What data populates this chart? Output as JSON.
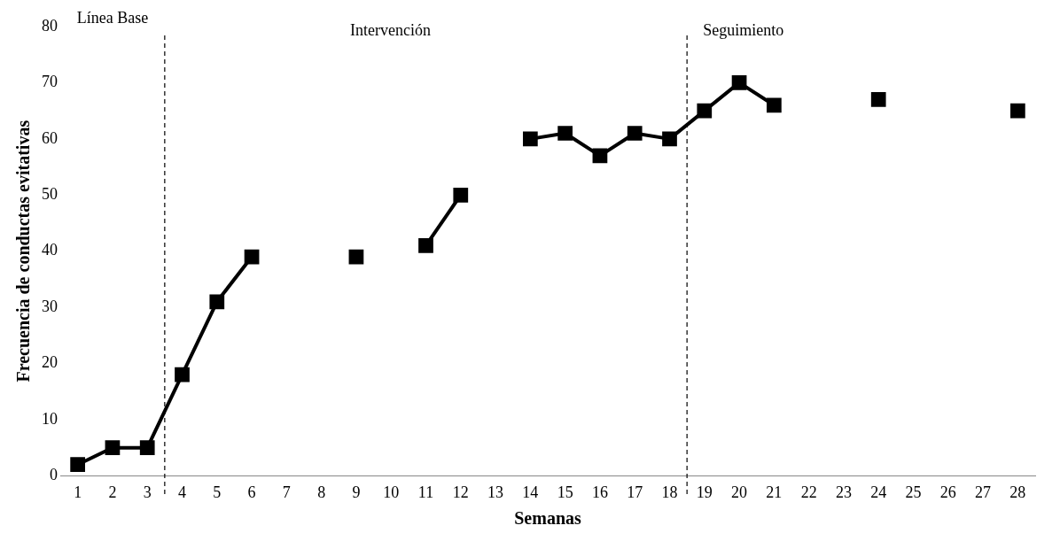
{
  "chart_data": {
    "type": "line",
    "xlabel": "Semanas",
    "ylabel": "Frecuencia de conductas evitativas",
    "x": [
      1,
      2,
      3,
      4,
      5,
      6,
      7,
      8,
      9,
      10,
      11,
      12,
      13,
      14,
      15,
      16,
      17,
      18,
      19,
      20,
      21,
      22,
      23,
      24,
      25,
      26,
      27,
      28
    ],
    "values": [
      2,
      5,
      5,
      18,
      31,
      39,
      null,
      null,
      39,
      null,
      41,
      50,
      null,
      60,
      61,
      57,
      61,
      60,
      65,
      70,
      66,
      null,
      null,
      67,
      null,
      null,
      null,
      65
    ],
    "color": "#000000",
    "xlim": [
      0.5,
      28.5
    ],
    "xticks": [
      1,
      2,
      3,
      4,
      5,
      6,
      7,
      8,
      9,
      10,
      11,
      12,
      13,
      14,
      15,
      16,
      17,
      18,
      19,
      20,
      21,
      22,
      23,
      24,
      25,
      26,
      27,
      28
    ],
    "ylim": [
      0,
      80
    ],
    "yticks": [
      0,
      10,
      20,
      30,
      40,
      50,
      60,
      70,
      80
    ],
    "ref_lines": [
      {
        "axis": "x",
        "value": 3.5,
        "color": "#000000",
        "line_style": "dashed"
      },
      {
        "axis": "x",
        "value": 18.5,
        "color": "#000000",
        "line_style": "dashed"
      }
    ],
    "annotations": [
      "Línea Base",
      "Intervención",
      "Seguimiento"
    ],
    "grid": false,
    "legend": false,
    "marker": "square",
    "line_style": "solid"
  }
}
